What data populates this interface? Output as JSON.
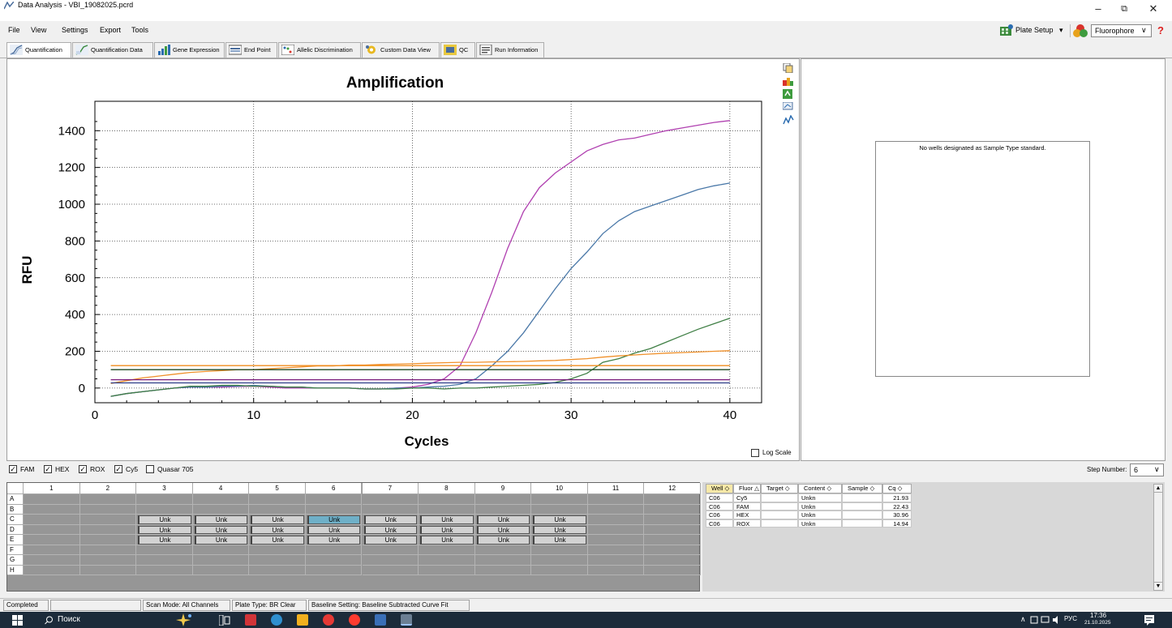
{
  "window": {
    "title": "Data Analysis - VBI_19082025.pcrd",
    "minimize": "–",
    "restore": "⧉",
    "close": "✕"
  },
  "menu": [
    "File",
    "View",
    "Settings",
    "Export",
    "Tools"
  ],
  "toolbar_right": {
    "plate_setup": "Plate Setup",
    "plate_setup_arrow": "▾",
    "fluorophore": "Fluorophore",
    "dropdown_arrow": "∨",
    "help": "?"
  },
  "tabs": [
    {
      "label": "Quantification",
      "icon": "amplification-icon"
    },
    {
      "label": "Quantification Data",
      "icon": "quant-data-icon"
    },
    {
      "label": "Gene Expression",
      "icon": "bar-chart-icon"
    },
    {
      "label": "End Point",
      "icon": "end-point-icon"
    },
    {
      "label": "Allelic Discrimination",
      "icon": "allelic-icon"
    },
    {
      "label": "Custom Data View",
      "icon": "gear-icon"
    },
    {
      "label": "QC",
      "icon": "qc-icon"
    },
    {
      "label": "Run Information",
      "icon": "run-info-icon"
    }
  ],
  "chart_tools": [
    "copy-icon",
    "export-icon",
    "refresh-icon",
    "zoom-icon",
    "trace-icon"
  ],
  "chart_data": {
    "type": "line",
    "title": "Amplification",
    "xlabel": "Cycles",
    "ylabel": "RFU",
    "xlim": [
      0,
      42
    ],
    "ylim": [
      -80,
      1560
    ],
    "xticks": [
      0,
      10,
      20,
      30,
      40
    ],
    "yticks": [
      0,
      200,
      400,
      600,
      800,
      1000,
      1200,
      1400
    ],
    "grid": true,
    "series": [
      {
        "color": "#b040b0",
        "x": [
          1,
          2,
          3,
          4,
          5,
          6,
          7,
          8,
          9,
          10,
          11,
          12,
          13,
          14,
          15,
          16,
          17,
          18,
          19,
          20,
          21,
          22,
          23,
          24,
          25,
          26,
          27,
          28,
          29,
          30,
          31,
          32,
          33,
          34,
          35,
          36,
          37,
          38,
          39,
          40
        ],
        "y": [
          -45,
          -30,
          -20,
          -10,
          0,
          5,
          5,
          5,
          8,
          10,
          5,
          0,
          0,
          0,
          0,
          0,
          -5,
          -5,
          0,
          5,
          20,
          50,
          120,
          300,
          520,
          760,
          960,
          1090,
          1170,
          1230,
          1290,
          1325,
          1350,
          1360,
          1380,
          1400,
          1415,
          1430,
          1445,
          1455
        ]
      },
      {
        "color": "#4a78a8",
        "x": [
          1,
          2,
          3,
          4,
          5,
          6,
          7,
          8,
          9,
          10,
          11,
          12,
          13,
          14,
          15,
          16,
          17,
          18,
          19,
          20,
          21,
          22,
          23,
          24,
          25,
          26,
          27,
          28,
          29,
          30,
          31,
          32,
          33,
          34,
          35,
          36,
          37,
          38,
          39,
          40
        ],
        "y": [
          -45,
          -30,
          -20,
          -10,
          0,
          5,
          5,
          10,
          10,
          15,
          10,
          5,
          5,
          0,
          0,
          0,
          -5,
          -5,
          0,
          0,
          5,
          10,
          20,
          50,
          120,
          200,
          300,
          420,
          540,
          650,
          740,
          840,
          910,
          960,
          990,
          1020,
          1050,
          1080,
          1100,
          1115
        ]
      },
      {
        "color": "#3f7f45",
        "x": [
          1,
          2,
          3,
          4,
          5,
          6,
          7,
          8,
          9,
          10,
          11,
          12,
          13,
          14,
          15,
          16,
          17,
          18,
          19,
          20,
          21,
          22,
          23,
          24,
          25,
          26,
          27,
          28,
          29,
          30,
          31,
          32,
          33,
          34,
          35,
          36,
          37,
          38,
          39,
          40
        ],
        "y": [
          -45,
          -30,
          -20,
          -10,
          0,
          10,
          10,
          15,
          15,
          10,
          10,
          5,
          5,
          0,
          0,
          0,
          -5,
          -5,
          -5,
          0,
          0,
          -5,
          0,
          0,
          5,
          10,
          15,
          20,
          30,
          50,
          80,
          140,
          160,
          190,
          215,
          250,
          285,
          320,
          350,
          380
        ]
      },
      {
        "color": "#f0902a",
        "x": [
          1,
          2,
          3,
          4,
          5,
          6,
          7,
          8,
          9,
          10,
          11,
          12,
          13,
          14,
          15,
          16,
          17,
          18,
          19,
          20,
          21,
          22,
          23,
          24,
          25,
          26,
          27,
          28,
          29,
          30,
          31,
          32,
          33,
          34,
          35,
          36,
          37,
          38,
          39,
          40
        ],
        "y": [
          25,
          40,
          55,
          65,
          75,
          85,
          90,
          95,
          100,
          100,
          105,
          110,
          115,
          120,
          120,
          125,
          125,
          128,
          130,
          132,
          135,
          138,
          140,
          140,
          142,
          143,
          145,
          148,
          150,
          155,
          160,
          168,
          175,
          180,
          185,
          190,
          193,
          196,
          200,
          203
        ]
      },
      {
        "color": "#f08c1e",
        "x": [
          1,
          40
        ],
        "y": [
          122,
          122
        ]
      },
      {
        "color": "#1f4a23",
        "x": [
          1,
          40
        ],
        "y": [
          100,
          100
        ]
      },
      {
        "color": "#7a1a7a",
        "x": [
          1,
          40
        ],
        "y": [
          45,
          45
        ]
      },
      {
        "color": "#2a3a86",
        "x": [
          1,
          40
        ],
        "y": [
          28,
          28
        ]
      }
    ],
    "log_scale_label": "Log Scale"
  },
  "standard_curve": {
    "message": "No wells designated as Sample Type standard."
  },
  "fluorophores": [
    {
      "label": "FAM",
      "checked": true
    },
    {
      "label": "HEX",
      "checked": true
    },
    {
      "label": "ROX",
      "checked": true
    },
    {
      "label": "Cy5",
      "checked": true
    },
    {
      "label": "Quasar 705",
      "checked": false
    }
  ],
  "step_number": {
    "label": "Step Number:",
    "value": "6",
    "arrow": "∨"
  },
  "plate": {
    "columns": [
      "1",
      "2",
      "3",
      "4",
      "5",
      "6",
      "7",
      "8",
      "9",
      "10",
      "11",
      "12"
    ],
    "rows": [
      "A",
      "B",
      "C",
      "D",
      "E",
      "F",
      "G",
      "H"
    ],
    "unk_label": "Unk",
    "filled_rows": [
      "C",
      "D",
      "E"
    ],
    "filled_cols": [
      3,
      4,
      5,
      6,
      7,
      8,
      9,
      10
    ],
    "selected_well": "C6"
  },
  "well_table": {
    "headers": [
      "Well",
      "Fluor",
      "Target",
      "Content",
      "Sample",
      "Cq"
    ],
    "header_markers": [
      "◇",
      "△",
      "◇",
      "◇",
      "◇",
      "◇"
    ],
    "rows": [
      [
        "C06",
        "Cy5",
        "",
        "Unkn",
        "",
        "21.93"
      ],
      [
        "C06",
        "FAM",
        "",
        "Unkn",
        "",
        "22.43"
      ],
      [
        "C06",
        "HEX",
        "",
        "Unkn",
        "",
        "30.96"
      ],
      [
        "C06",
        "ROX",
        "",
        "Unkn",
        "",
        "14.94"
      ]
    ]
  },
  "status": {
    "state": "Completed",
    "scan_mode": "Scan Mode: All Channels",
    "plate_type": "Plate Type: BR Clear",
    "baseline": "Baseline Setting: Baseline Subtracted Curve Fit"
  },
  "taskbar": {
    "search_placeholder": "Поиск",
    "lang": "РУС",
    "time": "17:36",
    "date": "21.10.2025",
    "tray_arrow": "∧"
  },
  "colors": {
    "accent": "#6aaed6",
    "selected_well": "#6fb0c8"
  }
}
